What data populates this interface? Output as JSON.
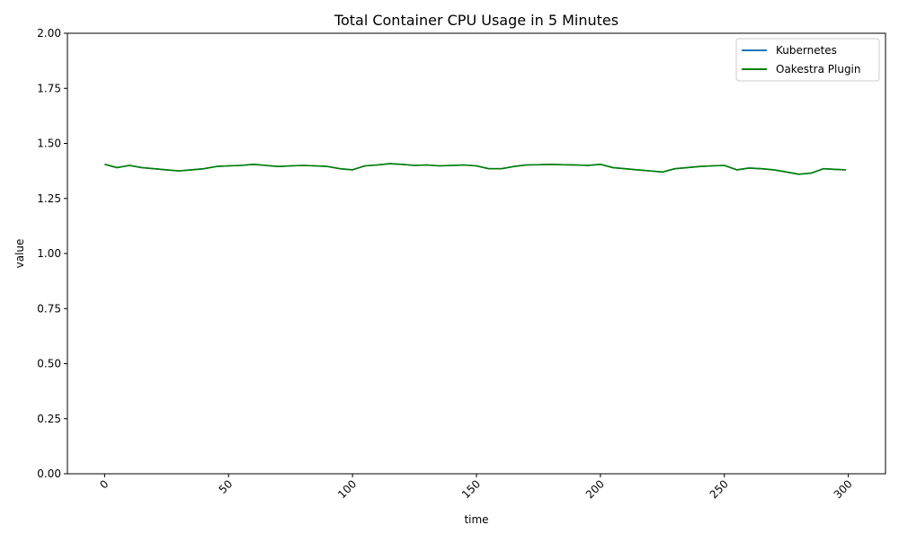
{
  "chart_data": {
    "type": "line",
    "title": "Total Container CPU Usage in 5 Minutes",
    "xlabel": "time",
    "ylabel": "value",
    "xlim": [
      -15,
      315
    ],
    "ylim": [
      0,
      2
    ],
    "xticks": [
      0,
      50,
      100,
      150,
      200,
      250,
      300
    ],
    "xtick_labels": [
      "0",
      "50",
      "100",
      "150",
      "200",
      "250",
      "300"
    ],
    "xtick_rotation": 45,
    "yticks": [
      0,
      0.25,
      0.5,
      0.75,
      1.0,
      1.25,
      1.5,
      1.75,
      2.0
    ],
    "ytick_labels": [
      "0.00",
      "0.25",
      "0.50",
      "0.75",
      "1.00",
      "1.25",
      "1.50",
      "1.75",
      "2.00"
    ],
    "grid": false,
    "legend_position": "top-right",
    "x": [
      0,
      5,
      10,
      15,
      20,
      25,
      30,
      35,
      40,
      45,
      50,
      55,
      60,
      65,
      70,
      75,
      80,
      85,
      90,
      95,
      100,
      105,
      110,
      115,
      120,
      125,
      130,
      135,
      140,
      145,
      150,
      155,
      160,
      165,
      170,
      175,
      180,
      185,
      190,
      195,
      200,
      205,
      210,
      215,
      220,
      225,
      230,
      235,
      240,
      245,
      250,
      255,
      260,
      265,
      270,
      275,
      280,
      285,
      290,
      295,
      299
    ],
    "series": [
      {
        "name": "Kubernetes",
        "color": "#1f77b4",
        "values": [
          1.405,
          1.39,
          1.4,
          1.39,
          1.385,
          1.38,
          1.375,
          1.38,
          1.385,
          1.395,
          1.398,
          1.4,
          1.405,
          1.4,
          1.395,
          1.398,
          1.4,
          1.398,
          1.395,
          1.385,
          1.38,
          1.398,
          1.402,
          1.408,
          1.405,
          1.4,
          1.402,
          1.398,
          1.4,
          1.402,
          1.398,
          1.385,
          1.385,
          1.395,
          1.402,
          1.403,
          1.405,
          1.403,
          1.402,
          1.4,
          1.405,
          1.39,
          1.385,
          1.38,
          1.375,
          1.37,
          1.385,
          1.39,
          1.395,
          1.398,
          1.4,
          1.38,
          1.388,
          1.385,
          1.38,
          1.37,
          1.36,
          1.365,
          1.385,
          1.382,
          1.38
        ]
      },
      {
        "name": "Oakestra Plugin",
        "color": "#008000",
        "values": [
          1.405,
          1.39,
          1.4,
          1.39,
          1.385,
          1.38,
          1.375,
          1.38,
          1.385,
          1.395,
          1.398,
          1.4,
          1.405,
          1.4,
          1.395,
          1.398,
          1.4,
          1.398,
          1.395,
          1.385,
          1.38,
          1.398,
          1.402,
          1.408,
          1.405,
          1.4,
          1.402,
          1.398,
          1.4,
          1.402,
          1.398,
          1.385,
          1.385,
          1.395,
          1.402,
          1.403,
          1.405,
          1.403,
          1.402,
          1.4,
          1.405,
          1.39,
          1.385,
          1.38,
          1.375,
          1.37,
          1.385,
          1.39,
          1.395,
          1.398,
          1.4,
          1.38,
          1.388,
          1.385,
          1.38,
          1.37,
          1.36,
          1.365,
          1.385,
          1.382,
          1.38
        ]
      }
    ]
  }
}
